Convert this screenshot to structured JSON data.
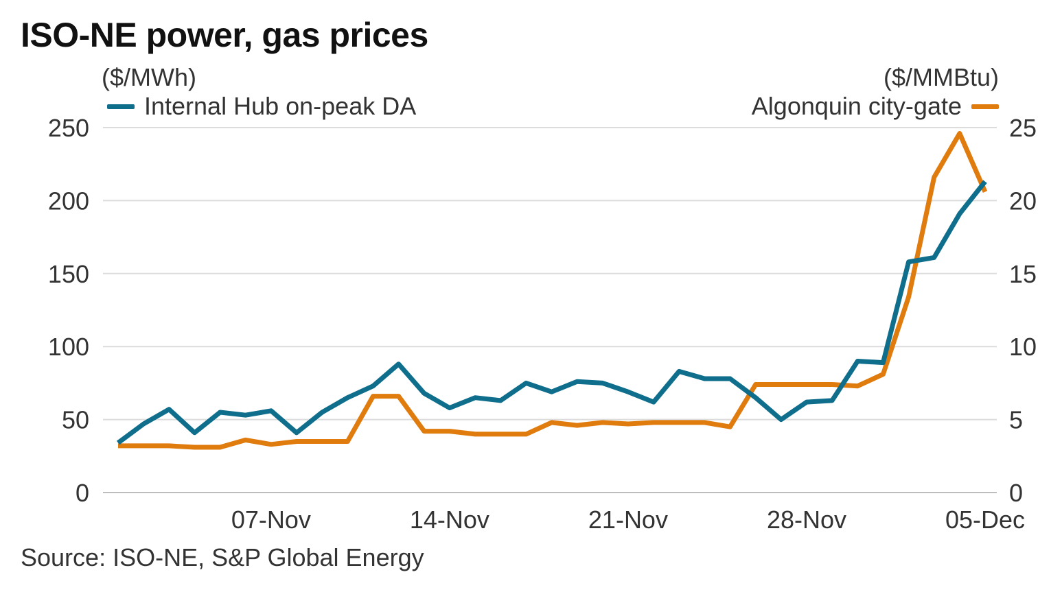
{
  "chart_data": {
    "type": "line",
    "title": "ISO-NE power, gas prices",
    "source": "Source: ISO-NE, S&P Global Energy",
    "left_axis": {
      "unit": "($/MWh)",
      "ylim": [
        0,
        250
      ],
      "ticks": [
        "0",
        "50",
        "100",
        "150",
        "200",
        "250"
      ],
      "tick_values": [
        0,
        50,
        100,
        150,
        200,
        250
      ]
    },
    "right_axis": {
      "unit": "($/MMBtu)",
      "ylim": [
        0,
        25
      ],
      "ticks": [
        "0",
        "5",
        "10",
        "15",
        "20",
        "25"
      ],
      "tick_values": [
        0,
        5,
        10,
        15,
        20,
        25
      ]
    },
    "x_axis": {
      "index_range": [
        0,
        34
      ],
      "ticks": [
        "07-Nov",
        "14-Nov",
        "21-Nov",
        "28-Nov",
        "05-Dec"
      ],
      "tick_indices": [
        6,
        13,
        20,
        27,
        34
      ]
    },
    "grid": true,
    "series": [
      {
        "name": "Internal Hub on-peak DA",
        "axis": "left",
        "color": "#0f6e8c",
        "values": [
          34,
          47,
          57,
          41,
          55,
          53,
          56,
          41,
          55,
          65,
          73,
          88,
          68,
          58,
          65,
          63,
          75,
          69,
          76,
          75,
          69,
          62,
          83,
          78,
          78,
          65,
          50,
          62,
          63,
          90,
          89,
          158,
          161,
          191,
          213
        ]
      },
      {
        "name": "Algonquin city-gate",
        "axis": "right",
        "color": "#e07b0e",
        "values": [
          3.2,
          3.2,
          3.2,
          3.1,
          3.1,
          3.6,
          3.3,
          3.5,
          3.5,
          3.5,
          6.6,
          6.6,
          4.2,
          4.2,
          4.0,
          4.0,
          4.0,
          4.8,
          4.6,
          4.8,
          4.7,
          4.8,
          4.8,
          4.8,
          4.5,
          7.4,
          7.4,
          7.4,
          7.4,
          7.3,
          8.1,
          13.4,
          21.6,
          24.6,
          20.6
        ]
      }
    ]
  }
}
